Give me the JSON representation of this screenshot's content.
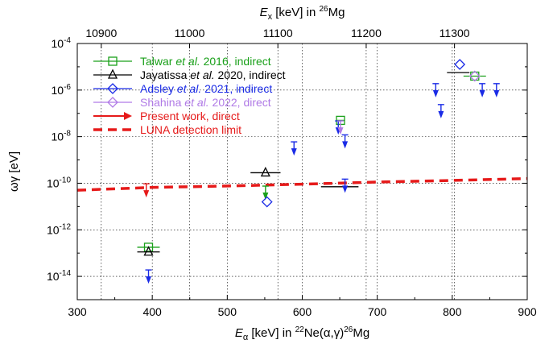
{
  "chart_data": {
    "type": "scatter",
    "xlabel_main": "E",
    "xlabel_sub": "α",
    "xlabel_rest_a": " [keV] in ",
    "xlabel_sup1": "22",
    "xlabel_rest_b": "Ne(α,γ)",
    "xlabel_sup2": "26",
    "xlabel_rest_c": "Mg",
    "ylabel": "ωγ [eV]",
    "top_xlabel_main": "E",
    "top_xlabel_sub": "x",
    "top_xlabel_rest": " [keV] in ",
    "top_xlabel_sup": "26",
    "top_xlabel_end": "Mg",
    "xlim": [
      300,
      900
    ],
    "ylim_log10": [
      -15,
      -4
    ],
    "x_ticks": [
      300,
      400,
      500,
      600,
      700,
      800,
      900
    ],
    "x_tick_labels": [
      "300",
      "400",
      "500",
      "600",
      "700",
      "800",
      "900"
    ],
    "y_ticks_log10": [
      -14,
      -12,
      -10,
      -8,
      -6,
      -4
    ],
    "y_tick_labels": [
      {
        "base": "10",
        "exp": "-14"
      },
      {
        "base": "10",
        "exp": "-12"
      },
      {
        "base": "10",
        "exp": "-10"
      },
      {
        "base": "10",
        "exp": "-8"
      },
      {
        "base": "10",
        "exp": "-6"
      },
      {
        "base": "10",
        "exp": "-4"
      }
    ],
    "top_ticks_ex_kev": [
      10900,
      11000,
      11100,
      11200,
      11300
    ],
    "top_tick_labels": [
      "10900",
      "11000",
      "11100",
      "11200",
      "11300"
    ],
    "top_axis_map": {
      "ex": [
        10900,
        11300
      ],
      "ealpha": [
        332,
        803
      ]
    },
    "grid": true,
    "legend_position": "top-left",
    "legend": [
      {
        "key": "talwar",
        "prefix": "Talwar ",
        "italic": "et al.",
        "suffix": " 2016, indirect",
        "color": "#1aa01a",
        "marker": "square"
      },
      {
        "key": "jaya",
        "prefix": "Jayatissa ",
        "italic": "et al.",
        "suffix": " 2020, indirect",
        "color": "#000000",
        "marker": "triangle"
      },
      {
        "key": "adsley",
        "prefix": "Adsley ",
        "italic": "et al.",
        "suffix": " 2021, indirect",
        "color": "#1a2be6",
        "marker": "diamond"
      },
      {
        "key": "shahina",
        "prefix": "Shahina ",
        "italic": "et al.",
        "suffix": " 2022, direct",
        "color": "#b07ae6",
        "marker": "diamond"
      },
      {
        "key": "present",
        "prefix": "Present work, direct",
        "italic": "",
        "suffix": "",
        "color": "#e61a1a",
        "marker": "arrow"
      },
      {
        "key": "luna",
        "prefix": "LUNA detection limit",
        "italic": "",
        "suffix": "",
        "color": "#e61a1a",
        "marker": "dash"
      }
    ],
    "series": [
      {
        "name": "Talwar et al. 2016, indirect",
        "key": "talwar",
        "color": "#1aa01a",
        "points": [
          {
            "x": 395,
            "log10_y": -12.75,
            "xerr": 15,
            "kind": "point"
          },
          {
            "x": 551,
            "log10_y": -10.4,
            "kind": "upper"
          },
          {
            "x": 651,
            "log10_y": -7.3,
            "xerr": 5,
            "kind": "point"
          },
          {
            "x": 830,
            "log10_y": -5.4,
            "xerr": 15,
            "kind": "point"
          }
        ]
      },
      {
        "name": "Jayatissa et al. 2020, indirect",
        "key": "jaya",
        "color": "#000000",
        "points": [
          {
            "x": 395,
            "log10_y": -12.95,
            "xerr": 15,
            "kind": "point"
          },
          {
            "x": 551,
            "log10_y": -9.55,
            "xerr": 20,
            "kind": "point"
          },
          {
            "x": 650,
            "log10_y": -10.15,
            "xerr": 25,
            "kind": "upper_bar"
          },
          {
            "x": 808,
            "log10_y": -5.25,
            "xerr": 15,
            "kind": "upper_bar"
          }
        ]
      },
      {
        "name": "Adsley et al. 2021, indirect",
        "key": "adsley",
        "color": "#1a2be6",
        "points": [
          {
            "x": 395,
            "log10_y": -14.0,
            "kind": "upper"
          },
          {
            "x": 553,
            "log10_y": -10.8,
            "kind": "point_upper"
          },
          {
            "x": 589,
            "log10_y": -8.5,
            "kind": "upper"
          },
          {
            "x": 648,
            "log10_y": -7.6,
            "kind": "upper"
          },
          {
            "x": 657,
            "log10_y": -8.2,
            "kind": "upper"
          },
          {
            "x": 657,
            "log10_y": -10.1,
            "kind": "upper"
          },
          {
            "x": 778,
            "log10_y": -6.0,
            "kind": "upper"
          },
          {
            "x": 785,
            "log10_y": -6.9,
            "kind": "upper"
          },
          {
            "x": 810,
            "log10_y": -4.9,
            "kind": "point_upper"
          },
          {
            "x": 840,
            "log10_y": -6.0,
            "kind": "upper"
          },
          {
            "x": 859,
            "log10_y": -6.0,
            "kind": "upper"
          }
        ]
      },
      {
        "name": "Shahina et al. 2022, direct",
        "key": "shahina",
        "color": "#b07ae6",
        "points": [
          {
            "x": 651,
            "log10_y": -7.6,
            "kind": "upper"
          },
          {
            "x": 830,
            "log10_y": -5.4,
            "kind": "point"
          }
        ]
      },
      {
        "name": "Present work, direct",
        "key": "present",
        "color": "#e61a1a",
        "points": [
          {
            "x": 392,
            "log10_y": -10.3,
            "kind": "upper"
          }
        ]
      },
      {
        "name": "LUNA detection limit",
        "key": "luna",
        "color": "#e61a1a",
        "curve": [
          [
            300,
            -10.3
          ],
          [
            400,
            -10.18
          ],
          [
            500,
            -10.12
          ],
          [
            600,
            -10.04
          ],
          [
            700,
            -9.95
          ],
          [
            800,
            -9.88
          ],
          [
            900,
            -9.8
          ]
        ]
      }
    ]
  }
}
